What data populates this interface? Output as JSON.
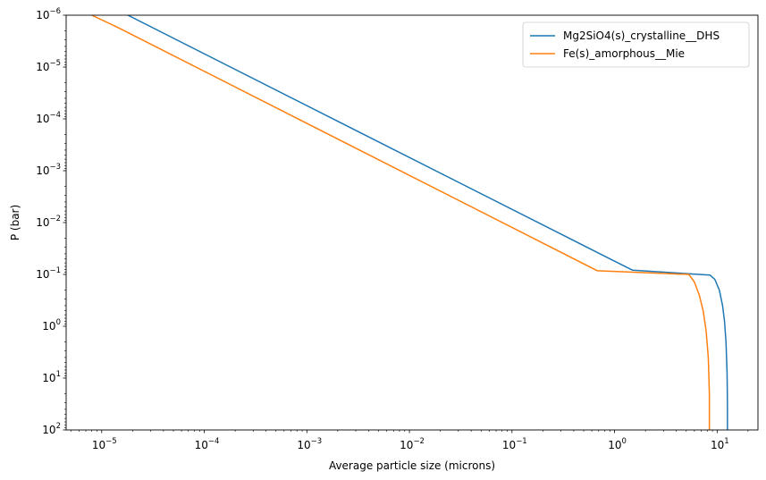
{
  "chart_data": {
    "type": "line",
    "xlabel": "Average particle size (microns)",
    "ylabel": "P (bar)",
    "xscale": "log",
    "yscale": "log",
    "yaxis_inverted": true,
    "xlim": [
      4.5e-06,
      25
    ],
    "ylim": [
      100,
      1e-06
    ],
    "x_ticks": [
      {
        "base": "10",
        "exp": "−5",
        "value": 1e-05
      },
      {
        "base": "10",
        "exp": "−4",
        "value": 0.0001
      },
      {
        "base": "10",
        "exp": "−3",
        "value": 0.001
      },
      {
        "base": "10",
        "exp": "−2",
        "value": 0.01
      },
      {
        "base": "10",
        "exp": "−1",
        "value": 0.1
      },
      {
        "base": "10",
        "exp": "0",
        "value": 1
      },
      {
        "base": "10",
        "exp": "1",
        "value": 10
      }
    ],
    "y_ticks": [
      {
        "base": "10",
        "exp": "−6",
        "value": 1e-06
      },
      {
        "base": "10",
        "exp": "−5",
        "value": 1e-05
      },
      {
        "base": "10",
        "exp": "−4",
        "value": 0.0001
      },
      {
        "base": "10",
        "exp": "−3",
        "value": 0.001
      },
      {
        "base": "10",
        "exp": "−2",
        "value": 0.01
      },
      {
        "base": "10",
        "exp": "−1",
        "value": 0.1
      },
      {
        "base": "10",
        "exp": "0",
        "value": 1
      },
      {
        "base": "10",
        "exp": "1",
        "value": 10
      },
      {
        "base": "10",
        "exp": "2",
        "value": 100
      }
    ],
    "legend_position": "top-right",
    "grid": false,
    "series": [
      {
        "name": "Mg2SiO4(s)_crystalline__DHS",
        "color": "#1f77b4",
        "points": [
          [
            1.8e-05,
            1e-06
          ],
          [
            0.9,
            0.05
          ],
          [
            1.5,
            0.083
          ],
          [
            8.5,
            0.103
          ],
          [
            9.5,
            0.125
          ],
          [
            10.5,
            0.2
          ],
          [
            11.3,
            0.4
          ],
          [
            11.8,
            0.8
          ],
          [
            12.2,
            2
          ],
          [
            12.5,
            8
          ],
          [
            12.6,
            30
          ],
          [
            12.6,
            100
          ]
        ]
      },
      {
        "name": "Fe(s)_amorphous__Mie",
        "color": "#ff7f0e",
        "points": [
          [
            8e-06,
            1e-06
          ],
          [
            1.5e-05,
            1.8e-06
          ],
          [
            0.68,
            0.085
          ],
          [
            5.3,
            0.1
          ],
          [
            6.0,
            0.14
          ],
          [
            6.7,
            0.25
          ],
          [
            7.3,
            0.5
          ],
          [
            7.8,
            1.2
          ],
          [
            8.2,
            4
          ],
          [
            8.4,
            20
          ],
          [
            8.4,
            100
          ]
        ]
      }
    ]
  }
}
